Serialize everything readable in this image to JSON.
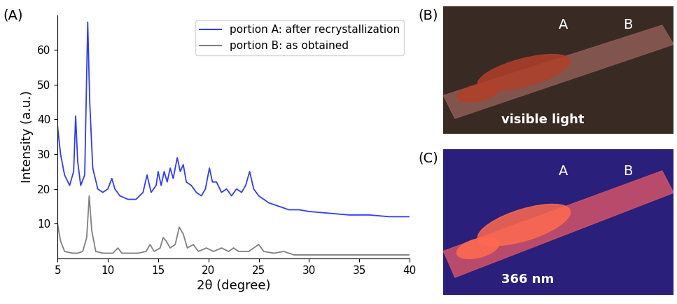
{
  "chart_data": {
    "type": "line",
    "annotations": [
      "(A)"
    ],
    "x_label": "2θ (degree)",
    "y_label": "Intensity (a.u.)",
    "xlim": [
      5,
      40
    ],
    "xticks": [
      5,
      10,
      15,
      20,
      25,
      30,
      35,
      40
    ],
    "ylim": [
      0,
      70
    ],
    "yticks": [
      10,
      20,
      30,
      40,
      50,
      60
    ],
    "legend": "upper right",
    "grid": false,
    "series": [
      {
        "name": "portion A: after recrystallization",
        "color": "#2f3df5",
        "x": [
          5.0,
          5.3,
          5.7,
          6.2,
          6.6,
          6.8,
          7.0,
          7.3,
          7.7,
          8.0,
          8.2,
          8.5,
          9.0,
          9.5,
          10.0,
          10.4,
          10.7,
          11.2,
          12.0,
          12.8,
          13.5,
          13.9,
          14.3,
          14.8,
          15.0,
          15.3,
          15.6,
          15.9,
          16.2,
          16.5,
          16.9,
          17.2,
          17.5,
          17.8,
          18.3,
          18.8,
          19.3,
          19.7,
          20.1,
          20.4,
          20.8,
          21.3,
          21.8,
          22.3,
          22.8,
          23.3,
          23.7,
          24.1,
          24.5,
          25.0,
          26.0,
          27.0,
          28.0,
          29.0,
          30.0,
          32.0,
          34.0,
          36.0,
          38.0,
          40.0
        ],
        "values": [
          38,
          30,
          24,
          21,
          25,
          41,
          28,
          21,
          24,
          68,
          45,
          26,
          20,
          19,
          20,
          23,
          20,
          18,
          17,
          17,
          19,
          24,
          19,
          21,
          25,
          21,
          25,
          22,
          26,
          23,
          29,
          25,
          27,
          22,
          21,
          19,
          18,
          20,
          26,
          22,
          22,
          19,
          20,
          18,
          20,
          19,
          21,
          25,
          20,
          18,
          16,
          15,
          14,
          14,
          13.5,
          13,
          12.5,
          12.5,
          12,
          12
        ]
      },
      {
        "name": "portion B: as obtained",
        "color": "#808080",
        "x": [
          5.0,
          5.3,
          5.7,
          6.5,
          7.0,
          7.5,
          7.9,
          8.15,
          8.4,
          8.8,
          9.5,
          10.5,
          11.0,
          11.4,
          12.0,
          13.0,
          13.8,
          14.2,
          14.6,
          15.2,
          15.5,
          15.8,
          16.2,
          16.7,
          17.1,
          17.5,
          17.9,
          18.5,
          19.0,
          19.8,
          20.5,
          21.3,
          22.0,
          22.5,
          23.0,
          24.0,
          25.0,
          25.5,
          26.5,
          27.5,
          28.5,
          30.0,
          35.0,
          40.0
        ],
        "values": [
          10,
          5,
          2,
          1.5,
          1.5,
          2,
          6,
          18,
          8,
          2,
          1.5,
          1.5,
          3,
          1.5,
          1.5,
          1.5,
          2,
          4,
          2,
          3,
          6,
          5,
          3,
          4,
          9,
          7,
          3,
          4,
          2,
          3,
          2,
          3,
          2,
          3,
          2,
          2,
          4,
          2,
          1.5,
          2,
          1,
          1,
          1,
          1
        ]
      }
    ]
  },
  "photos": [
    {
      "panel_label": "(B)",
      "caption": "visible light",
      "markers": [
        "A",
        "B"
      ]
    },
    {
      "panel_label": "(C)",
      "caption": "366 nm",
      "markers": [
        "A",
        "B"
      ]
    }
  ]
}
